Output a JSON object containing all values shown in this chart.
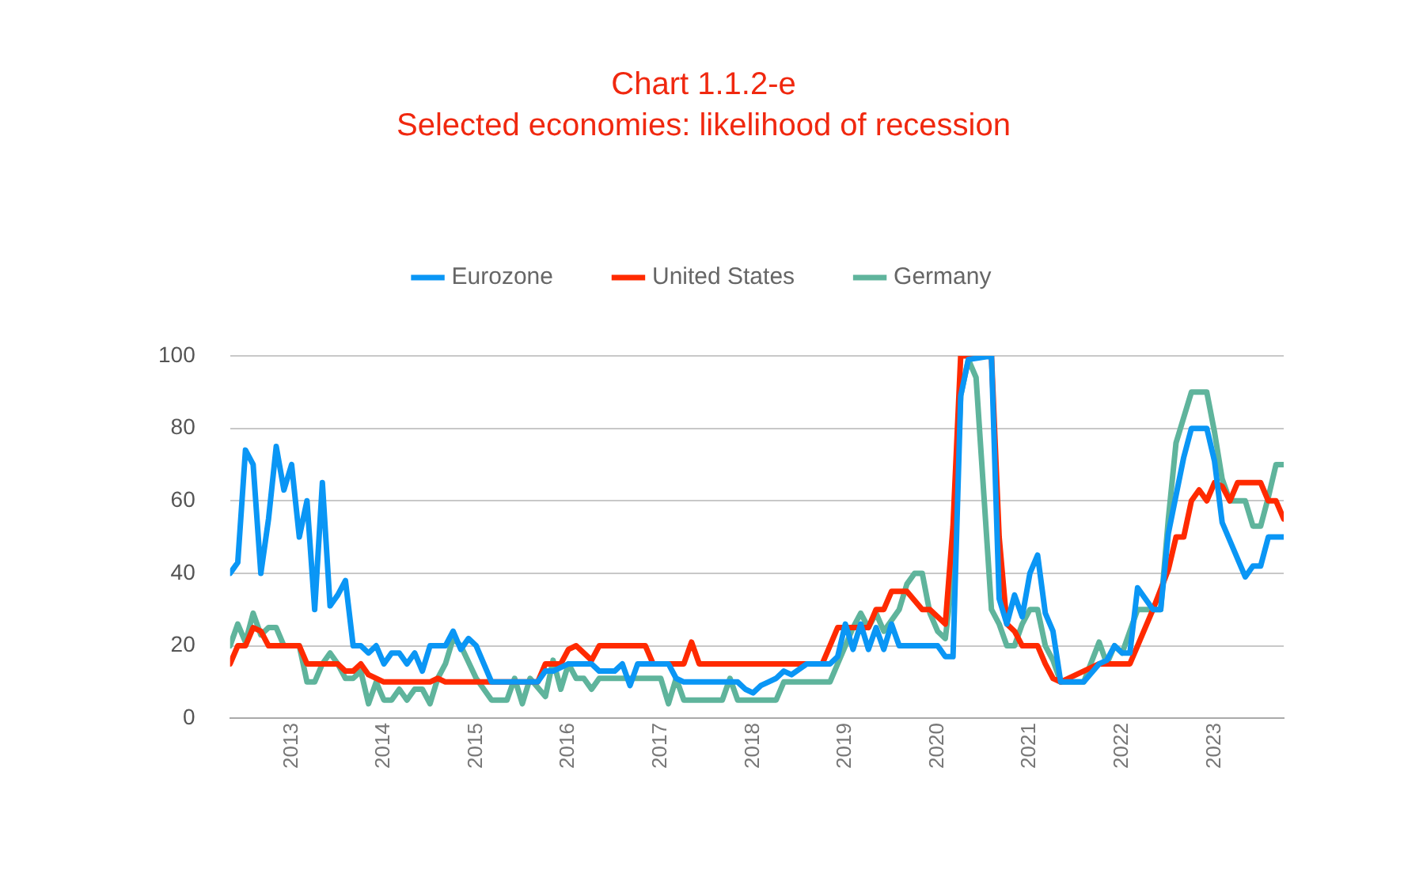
{
  "chart_data": {
    "type": "line",
    "title": "Chart 1.1.2-e",
    "subtitle": "Selected economies: likelihood of recession",
    "xlim": [
      "2012-05",
      "2023-10"
    ],
    "xticks": [
      "2013",
      "2014",
      "2015",
      "2016",
      "2017",
      "2018",
      "2019",
      "2020",
      "2021",
      "2022",
      "2023"
    ],
    "ylim": [
      0,
      100
    ],
    "yticks": [
      0,
      20,
      40,
      60,
      80,
      100
    ],
    "grid": "y",
    "legend": "top",
    "marker": "none",
    "line_style": "solid",
    "series": [
      {
        "name": "Eurozone",
        "color": "#0a96f5",
        "x": [
          "2012-05",
          "2012-06",
          "2012-07",
          "2012-08",
          "2012-09",
          "2012-10",
          "2012-11",
          "2012-12",
          "2013-01",
          "2013-02",
          "2013-03",
          "2013-04",
          "2013-05",
          "2013-06",
          "2013-07",
          "2013-08",
          "2013-09",
          "2013-10",
          "2013-11",
          "2013-12",
          "2014-01",
          "2014-02",
          "2014-03",
          "2014-04",
          "2014-05",
          "2014-06",
          "2014-07",
          "2014-09",
          "2014-10",
          "2014-11",
          "2014-12",
          "2015-01",
          "2015-03",
          "2015-09",
          "2015-10",
          "2015-11",
          "2016-01",
          "2016-04",
          "2016-05",
          "2016-07",
          "2016-08",
          "2016-09",
          "2016-10",
          "2017-02",
          "2017-03",
          "2017-04",
          "2017-11",
          "2017-12",
          "2018-01",
          "2018-02",
          "2018-03",
          "2018-04",
          "2018-05",
          "2018-06",
          "2018-08",
          "2018-11",
          "2018-12",
          "2019-01",
          "2019-02",
          "2019-03",
          "2019-04",
          "2019-05",
          "2019-06",
          "2019-07",
          "2019-08",
          "2020-01",
          "2020-02",
          "2020-03",
          "2020-04",
          "2020-05",
          "2020-08",
          "2020-09",
          "2020-10",
          "2020-11",
          "2020-12",
          "2021-01",
          "2021-02",
          "2021-03",
          "2021-04",
          "2021-05",
          "2021-08",
          "2021-10",
          "2021-11",
          "2021-12",
          "2022-01",
          "2022-02",
          "2022-03",
          "2022-05",
          "2022-06",
          "2022-07",
          "2022-09",
          "2022-10",
          "2022-12",
          "2023-01",
          "2023-02",
          "2023-05",
          "2023-06",
          "2023-07",
          "2023-08",
          "2023-10"
        ],
        "values": [
          40,
          43,
          74,
          70,
          40,
          55,
          75,
          63,
          70,
          50,
          60,
          30,
          65,
          31,
          34,
          38,
          20,
          20,
          18,
          20,
          15,
          18,
          18,
          15,
          18,
          13,
          20,
          20,
          24,
          19,
          22,
          20,
          10,
          10,
          13,
          13,
          15,
          15,
          13,
          13,
          15,
          9,
          15,
          15,
          11,
          10,
          10,
          8,
          7,
          9,
          10,
          11,
          13,
          12,
          15,
          15,
          17,
          26,
          19,
          26,
          19,
          25,
          19,
          26,
          20,
          20,
          17,
          17,
          89,
          99,
          100,
          33,
          26,
          34,
          28,
          40,
          45,
          29,
          24,
          10,
          10,
          15,
          16,
          20,
          18,
          18,
          36,
          30,
          30,
          51,
          72,
          80,
          80,
          71,
          54,
          39,
          42,
          42,
          50,
          50
        ]
      },
      {
        "name": "United States",
        "color": "#ff2a00",
        "x": [
          "2012-05",
          "2012-06",
          "2012-07",
          "2012-08",
          "2012-09",
          "2012-10",
          "2013-02",
          "2013-03",
          "2013-07",
          "2013-08",
          "2013-09",
          "2013-10",
          "2013-11",
          "2014-01",
          "2014-07",
          "2014-08",
          "2014-09",
          "2015-09",
          "2015-10",
          "2015-12",
          "2016-01",
          "2016-02",
          "2016-04",
          "2016-05",
          "2016-11",
          "2016-12",
          "2017-04",
          "2017-05",
          "2017-06",
          "2018-10",
          "2018-11",
          "2018-12",
          "2019-04",
          "2019-05",
          "2019-06",
          "2019-07",
          "2019-09",
          "2019-11",
          "2019-12",
          "2020-02",
          "2020-03",
          "2020-04",
          "2020-08",
          "2020-09",
          "2020-10",
          "2020-11",
          "2020-12",
          "2021-02",
          "2021-03",
          "2021-04",
          "2021-05",
          "2021-10",
          "2022-02",
          "2022-03",
          "2022-05",
          "2022-07",
          "2022-08",
          "2022-09",
          "2022-10",
          "2022-11",
          "2022-12",
          "2023-01",
          "2023-02",
          "2023-03",
          "2023-04",
          "2023-07",
          "2023-08",
          "2023-09",
          "2023-10"
        ],
        "values": [
          15,
          20,
          20,
          25,
          24,
          20,
          20,
          15,
          15,
          13,
          13,
          15,
          12,
          10,
          10,
          11,
          10,
          10,
          15,
          15,
          19,
          20,
          16,
          20,
          20,
          15,
          15,
          21,
          15,
          15,
          20,
          25,
          25,
          30,
          30,
          35,
          35,
          30,
          30,
          26,
          53,
          100,
          100,
          50,
          26,
          24,
          20,
          20,
          15,
          11,
          10,
          15,
          15,
          20,
          30,
          41,
          50,
          50,
          60,
          63,
          60,
          65,
          64,
          60,
          65,
          65,
          60,
          60,
          55
        ]
      },
      {
        "name": "Germany",
        "color": "#5fb49c",
        "x": [
          "2012-05",
          "2012-06",
          "2012-07",
          "2012-08",
          "2012-09",
          "2012-10",
          "2012-11",
          "2012-12",
          "2013-02",
          "2013-03",
          "2013-04",
          "2013-05",
          "2013-06",
          "2013-07",
          "2013-08",
          "2013-09",
          "2013-10",
          "2013-11",
          "2013-12",
          "2014-01",
          "2014-02",
          "2014-03",
          "2014-04",
          "2014-05",
          "2014-06",
          "2014-07",
          "2014-08",
          "2014-09",
          "2014-10",
          "2014-11",
          "2015-01",
          "2015-03",
          "2015-05",
          "2015-06",
          "2015-07",
          "2015-08",
          "2015-10",
          "2015-11",
          "2015-12",
          "2016-01",
          "2016-02",
          "2016-03",
          "2016-04",
          "2016-05",
          "2017-01",
          "2017-02",
          "2017-03",
          "2017-04",
          "2017-09",
          "2017-10",
          "2017-11",
          "2018-04",
          "2018-05",
          "2018-11",
          "2018-12",
          "2019-01",
          "2019-02",
          "2019-03",
          "2019-04",
          "2019-05",
          "2019-06",
          "2019-08",
          "2019-09",
          "2019-10",
          "2019-11",
          "2019-12",
          "2020-01",
          "2020-02",
          "2020-03",
          "2020-04",
          "2020-05",
          "2020-06",
          "2020-07",
          "2020-08",
          "2020-09",
          "2020-10",
          "2020-11",
          "2020-12",
          "2021-01",
          "2021-02",
          "2021-03",
          "2021-04",
          "2021-05",
          "2021-08",
          "2021-10",
          "2021-11",
          "2021-12",
          "2022-01",
          "2022-03",
          "2022-06",
          "2022-07",
          "2022-08",
          "2022-10",
          "2022-12",
          "2023-01",
          "2023-02",
          "2023-03",
          "2023-05",
          "2023-06",
          "2023-07",
          "2023-08",
          "2023-09",
          "2023-10"
        ],
        "values": [
          20,
          26,
          21,
          29,
          23,
          25,
          25,
          20,
          20,
          10,
          10,
          15,
          18,
          15,
          11,
          11,
          13,
          4,
          10,
          5,
          5,
          8,
          5,
          8,
          8,
          4,
          11,
          15,
          22,
          20,
          11,
          5,
          5,
          11,
          4,
          11,
          6,
          16,
          8,
          15,
          11,
          11,
          8,
          11,
          11,
          4,
          11,
          5,
          5,
          11,
          5,
          5,
          10,
          10,
          15,
          20,
          25,
          29,
          25,
          29,
          24,
          30,
          37,
          40,
          40,
          29,
          24,
          22,
          40,
          89,
          99,
          94,
          62,
          30,
          26,
          20,
          20,
          26,
          30,
          30,
          20,
          16,
          10,
          10,
          21,
          15,
          20,
          18,
          30,
          30,
          55,
          76,
          90,
          90,
          79,
          66,
          60,
          60,
          53,
          53,
          61,
          70,
          70
        ]
      }
    ]
  }
}
